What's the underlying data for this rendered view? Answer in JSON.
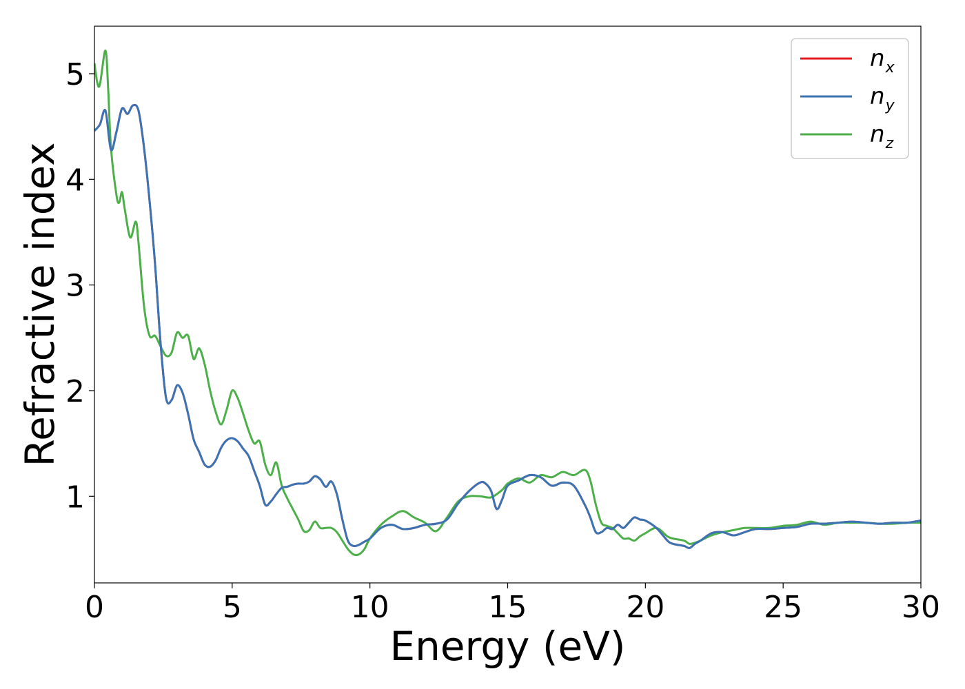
{
  "chart_data": {
    "type": "line",
    "xlabel": "Energy (eV)",
    "ylabel": "Refractive index",
    "xlim": [
      0,
      30
    ],
    "ylim": [
      0.18,
      5.45
    ],
    "xticks": [
      0,
      5,
      10,
      15,
      20,
      25,
      30
    ],
    "yticks": [
      1,
      2,
      3,
      4,
      5
    ],
    "grid": false,
    "legend_position": "top-right",
    "series": [
      {
        "name": "n_x",
        "legend_main": "n",
        "legend_sub": "x",
        "color": "#e41a1c",
        "x": [
          0,
          0.2,
          0.4,
          0.6,
          0.8,
          1.0,
          1.2,
          1.4,
          1.6,
          1.8,
          2.0,
          2.2,
          2.4,
          2.6,
          2.8,
          3.0,
          3.2,
          3.4,
          3.6,
          3.8,
          4.0,
          4.2,
          4.4,
          4.6,
          4.8,
          5.0,
          5.2,
          5.4,
          5.6,
          5.8,
          6.0,
          6.2,
          6.4,
          6.6,
          6.8,
          7.0,
          7.2,
          7.4,
          7.6,
          7.8,
          8.0,
          8.2,
          8.4,
          8.6,
          8.8,
          9.0,
          9.2,
          9.4,
          9.6,
          9.8,
          10.0,
          10.4,
          10.8,
          11.2,
          11.6,
          12.0,
          12.4,
          12.8,
          13.2,
          13.6,
          14.0,
          14.2,
          14.4,
          14.6,
          14.8,
          15.0,
          15.4,
          15.8,
          16.2,
          16.6,
          17.0,
          17.4,
          17.8,
          18.0,
          18.2,
          18.4,
          18.6,
          18.8,
          19.0,
          19.2,
          19.4,
          19.6,
          19.8,
          20.0,
          20.4,
          20.8,
          21.0,
          21.4,
          21.6,
          21.8,
          22.0,
          22.4,
          22.8,
          23.2,
          23.6,
          24.0,
          24.5,
          25.0,
          25.5,
          26.0,
          26.5,
          27.0,
          27.5,
          28.0,
          28.5,
          29.0,
          29.5,
          30.0
        ],
        "y": [
          4.46,
          4.52,
          4.65,
          4.28,
          4.45,
          4.67,
          4.62,
          4.7,
          4.65,
          4.3,
          3.8,
          3.2,
          2.45,
          1.93,
          1.91,
          2.05,
          1.98,
          1.78,
          1.54,
          1.42,
          1.3,
          1.28,
          1.34,
          1.46,
          1.53,
          1.55,
          1.52,
          1.45,
          1.38,
          1.24,
          1.1,
          0.92,
          0.95,
          1.02,
          1.08,
          1.09,
          1.11,
          1.12,
          1.12,
          1.14,
          1.19,
          1.16,
          1.09,
          1.14,
          1.02,
          0.78,
          0.58,
          0.53,
          0.54,
          0.57,
          0.6,
          0.7,
          0.73,
          0.69,
          0.7,
          0.73,
          0.74,
          0.78,
          0.93,
          1.05,
          1.13,
          1.12,
          1.05,
          0.88,
          0.97,
          1.1,
          1.15,
          1.2,
          1.18,
          1.1,
          1.13,
          1.1,
          0.92,
          0.8,
          0.66,
          0.66,
          0.7,
          0.69,
          0.73,
          0.7,
          0.75,
          0.8,
          0.78,
          0.77,
          0.7,
          0.58,
          0.55,
          0.53,
          0.51,
          0.55,
          0.58,
          0.65,
          0.66,
          0.63,
          0.66,
          0.69,
          0.69,
          0.7,
          0.71,
          0.74,
          0.74,
          0.75,
          0.76,
          0.75,
          0.74,
          0.75,
          0.75,
          0.77
        ]
      },
      {
        "name": "n_y",
        "legend_main": "n",
        "legend_sub": "y",
        "color": "#3b74b4",
        "x": [
          0,
          0.2,
          0.4,
          0.6,
          0.8,
          1.0,
          1.2,
          1.4,
          1.6,
          1.8,
          2.0,
          2.2,
          2.4,
          2.6,
          2.8,
          3.0,
          3.2,
          3.4,
          3.6,
          3.8,
          4.0,
          4.2,
          4.4,
          4.6,
          4.8,
          5.0,
          5.2,
          5.4,
          5.6,
          5.8,
          6.0,
          6.2,
          6.4,
          6.6,
          6.8,
          7.0,
          7.2,
          7.4,
          7.6,
          7.8,
          8.0,
          8.2,
          8.4,
          8.6,
          8.8,
          9.0,
          9.2,
          9.4,
          9.6,
          9.8,
          10.0,
          10.4,
          10.8,
          11.2,
          11.6,
          12.0,
          12.4,
          12.8,
          13.2,
          13.6,
          14.0,
          14.2,
          14.4,
          14.6,
          14.8,
          15.0,
          15.4,
          15.8,
          16.2,
          16.6,
          17.0,
          17.4,
          17.8,
          18.0,
          18.2,
          18.4,
          18.6,
          18.8,
          19.0,
          19.2,
          19.4,
          19.6,
          19.8,
          20.0,
          20.4,
          20.8,
          21.0,
          21.4,
          21.6,
          21.8,
          22.0,
          22.4,
          22.8,
          23.2,
          23.6,
          24.0,
          24.5,
          25.0,
          25.5,
          26.0,
          26.5,
          27.0,
          27.5,
          28.0,
          28.5,
          29.0,
          29.5,
          30.0
        ],
        "y": [
          4.46,
          4.52,
          4.65,
          4.28,
          4.45,
          4.67,
          4.62,
          4.7,
          4.65,
          4.3,
          3.8,
          3.2,
          2.45,
          1.93,
          1.91,
          2.05,
          1.98,
          1.78,
          1.54,
          1.42,
          1.3,
          1.28,
          1.34,
          1.46,
          1.53,
          1.55,
          1.52,
          1.45,
          1.38,
          1.24,
          1.1,
          0.92,
          0.95,
          1.02,
          1.08,
          1.09,
          1.11,
          1.12,
          1.12,
          1.14,
          1.19,
          1.16,
          1.09,
          1.14,
          1.02,
          0.78,
          0.58,
          0.53,
          0.54,
          0.57,
          0.6,
          0.7,
          0.73,
          0.69,
          0.7,
          0.73,
          0.74,
          0.78,
          0.93,
          1.05,
          1.13,
          1.12,
          1.05,
          0.88,
          0.97,
          1.1,
          1.15,
          1.2,
          1.18,
          1.1,
          1.13,
          1.1,
          0.92,
          0.8,
          0.66,
          0.66,
          0.7,
          0.69,
          0.73,
          0.7,
          0.75,
          0.8,
          0.78,
          0.77,
          0.7,
          0.58,
          0.55,
          0.53,
          0.51,
          0.55,
          0.58,
          0.65,
          0.66,
          0.63,
          0.66,
          0.69,
          0.69,
          0.7,
          0.71,
          0.74,
          0.74,
          0.75,
          0.76,
          0.75,
          0.74,
          0.75,
          0.75,
          0.77
        ]
      },
      {
        "name": "n_z",
        "legend_main": "n",
        "legend_sub": "z",
        "color": "#4daf4a",
        "x": [
          0,
          0.1,
          0.2,
          0.4,
          0.5,
          0.6,
          0.8,
          0.9,
          1.0,
          1.1,
          1.3,
          1.5,
          1.6,
          1.8,
          2.0,
          2.2,
          2.4,
          2.6,
          2.8,
          3.0,
          3.2,
          3.4,
          3.6,
          3.8,
          4.0,
          4.2,
          4.4,
          4.6,
          4.8,
          5.0,
          5.2,
          5.4,
          5.6,
          5.8,
          6.0,
          6.2,
          6.4,
          6.6,
          6.8,
          7.0,
          7.2,
          7.4,
          7.6,
          7.8,
          8.0,
          8.2,
          8.4,
          8.6,
          8.8,
          9.0,
          9.2,
          9.4,
          9.6,
          9.8,
          10.0,
          10.4,
          10.8,
          11.2,
          11.6,
          12.0,
          12.4,
          12.8,
          13.2,
          13.6,
          14.0,
          14.4,
          14.8,
          15.0,
          15.4,
          15.8,
          16.2,
          16.6,
          17.0,
          17.4,
          17.8,
          18.0,
          18.2,
          18.4,
          18.6,
          18.8,
          19.0,
          19.2,
          19.4,
          19.6,
          19.8,
          20.0,
          20.4,
          20.8,
          21.0,
          21.4,
          21.6,
          21.8,
          22.0,
          22.4,
          22.8,
          23.2,
          23.6,
          24.0,
          24.5,
          25.0,
          25.5,
          26.0,
          26.5,
          27.0,
          27.5,
          28.0,
          28.5,
          29.0,
          29.5,
          30.0
        ],
        "y": [
          5.1,
          4.92,
          4.9,
          5.22,
          4.85,
          4.3,
          3.85,
          3.78,
          3.88,
          3.72,
          3.45,
          3.6,
          3.4,
          2.8,
          2.52,
          2.52,
          2.42,
          2.33,
          2.36,
          2.55,
          2.5,
          2.52,
          2.3,
          2.4,
          2.25,
          2.0,
          1.8,
          1.68,
          1.82,
          2.0,
          1.93,
          1.78,
          1.62,
          1.5,
          1.52,
          1.3,
          1.2,
          1.32,
          1.1,
          0.98,
          0.88,
          0.78,
          0.67,
          0.68,
          0.76,
          0.7,
          0.7,
          0.7,
          0.66,
          0.58,
          0.5,
          0.45,
          0.45,
          0.5,
          0.6,
          0.73,
          0.81,
          0.86,
          0.8,
          0.75,
          0.67,
          0.8,
          0.95,
          1.0,
          1.0,
          0.99,
          1.06,
          1.12,
          1.17,
          1.13,
          1.2,
          1.18,
          1.23,
          1.2,
          1.25,
          1.15,
          0.92,
          0.75,
          0.72,
          0.7,
          0.65,
          0.6,
          0.6,
          0.58,
          0.62,
          0.65,
          0.7,
          0.62,
          0.6,
          0.58,
          0.55,
          0.56,
          0.58,
          0.63,
          0.66,
          0.68,
          0.7,
          0.7,
          0.7,
          0.72,
          0.73,
          0.76,
          0.73,
          0.75,
          0.75,
          0.75,
          0.74,
          0.74,
          0.75,
          0.75
        ]
      }
    ]
  }
}
